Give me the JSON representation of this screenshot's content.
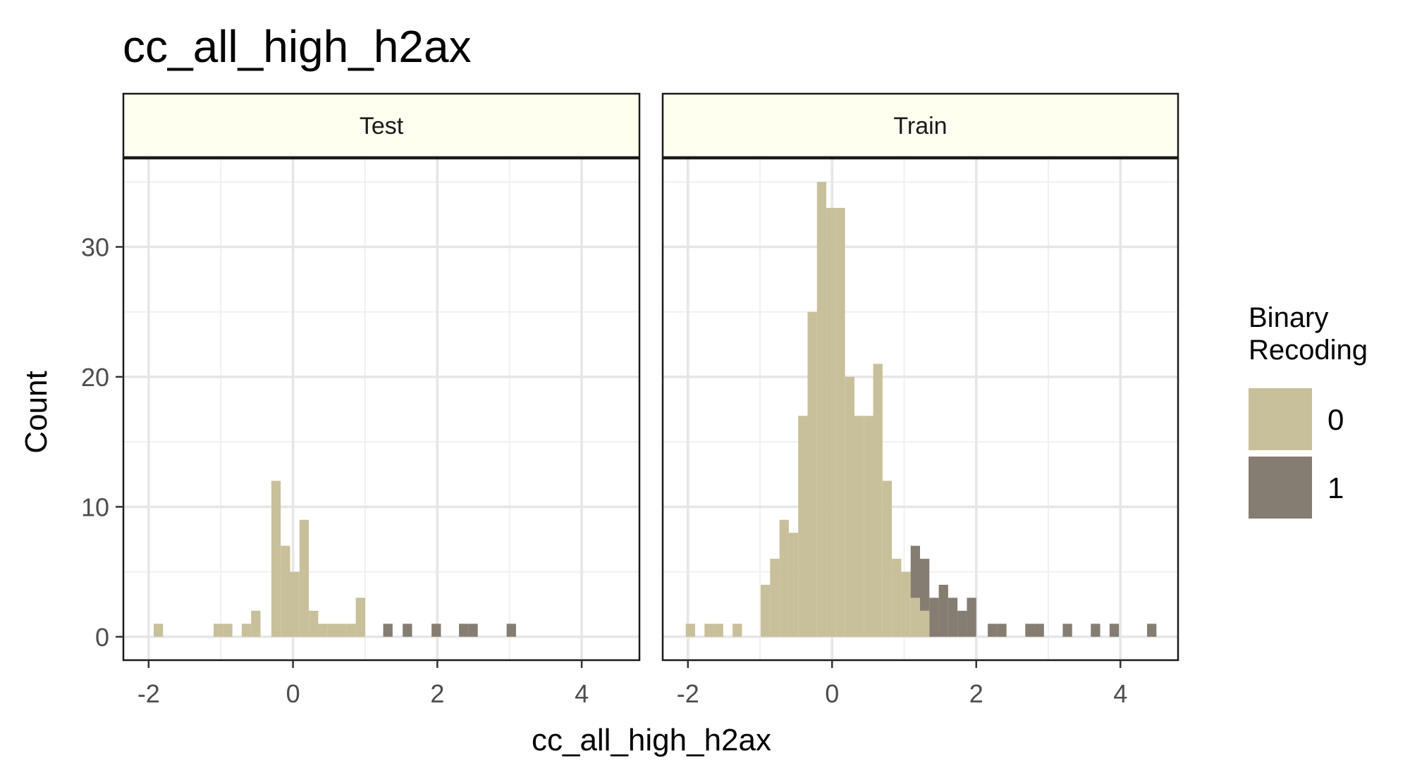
{
  "chart_data": {
    "type": "bar",
    "title": "cc_all_high_h2ax",
    "xlabel": "cc_all_high_h2ax",
    "ylabel": "Count",
    "xlim": [
      -2.35,
      4.8
    ],
    "ylim": [
      -1.8,
      36.8
    ],
    "x_ticks": [
      -2,
      0,
      2,
      4
    ],
    "x_tick_labels": [
      "-2",
      "0",
      "2",
      "4"
    ],
    "y_ticks": [
      0,
      10,
      20,
      30
    ],
    "y_tick_labels": [
      "0",
      "10",
      "20",
      "30"
    ],
    "grid": true,
    "bin_width": 0.13,
    "legend": {
      "title_lines": [
        "Binary",
        "Recoding"
      ],
      "placement": "right",
      "entries": [
        {
          "label": "0",
          "color": "#c8c09a"
        },
        {
          "label": "1",
          "color": "#857d72"
        }
      ]
    },
    "panels": [
      {
        "name": "Test",
        "series": [
          {
            "name": "0",
            "color": "#c8c09a",
            "bins": [
              [
                -1.93,
                -1.8,
                1
              ],
              [
                -1.1,
                -0.97,
                1
              ],
              [
                -0.97,
                -0.84,
                1
              ],
              [
                -0.71,
                -0.58,
                1
              ],
              [
                -0.58,
                -0.45,
                2
              ],
              [
                -0.3,
                -0.17,
                12
              ],
              [
                -0.17,
                -0.04,
                7
              ],
              [
                -0.04,
                0.09,
                5
              ],
              [
                0.09,
                0.22,
                9
              ],
              [
                0.22,
                0.35,
                2
              ],
              [
                0.35,
                0.48,
                1
              ],
              [
                0.48,
                0.61,
                1
              ],
              [
                0.61,
                0.74,
                1
              ],
              [
                0.74,
                0.87,
                1
              ],
              [
                0.87,
                1.0,
                3
              ]
            ]
          },
          {
            "name": "1",
            "color": "#857d72",
            "bins": [
              [
                1.25,
                1.38,
                1
              ],
              [
                1.52,
                1.65,
                1
              ],
              [
                1.92,
                2.05,
                1
              ],
              [
                2.3,
                2.43,
                1
              ],
              [
                2.43,
                2.56,
                1
              ],
              [
                2.96,
                3.09,
                1
              ]
            ]
          }
        ]
      },
      {
        "name": "Train",
        "series": [
          {
            "name": "0",
            "color": "#c8c09a",
            "bins": [
              [
                -2.03,
                -1.9,
                1
              ],
              [
                -1.77,
                -1.64,
                1
              ],
              [
                -1.64,
                -1.51,
                1
              ],
              [
                -1.38,
                -1.25,
                1
              ],
              [
                -0.99,
                -0.86,
                4
              ],
              [
                -0.86,
                -0.73,
                6
              ],
              [
                -0.73,
                -0.6,
                9
              ],
              [
                -0.6,
                -0.47,
                8
              ],
              [
                -0.47,
                -0.34,
                17
              ],
              [
                -0.34,
                -0.21,
                25
              ],
              [
                -0.21,
                -0.08,
                35
              ],
              [
                -0.08,
                0.05,
                33
              ],
              [
                0.05,
                0.18,
                33
              ],
              [
                0.18,
                0.31,
                20
              ],
              [
                0.31,
                0.44,
                17
              ],
              [
                0.44,
                0.57,
                17
              ],
              [
                0.57,
                0.7,
                21
              ],
              [
                0.7,
                0.83,
                12
              ],
              [
                0.83,
                0.96,
                6
              ],
              [
                0.96,
                1.09,
                5
              ],
              [
                1.09,
                1.22,
                3
              ],
              [
                1.22,
                1.35,
                2
              ]
            ]
          },
          {
            "name": "1",
            "color": "#857d72",
            "bins": [
              [
                1.09,
                1.22,
                4
              ],
              [
                1.22,
                1.35,
                4
              ],
              [
                1.35,
                1.48,
                3
              ],
              [
                1.48,
                1.61,
                4
              ],
              [
                1.61,
                1.74,
                3
              ],
              [
                1.74,
                1.87,
                2
              ],
              [
                1.87,
                2.0,
                3
              ],
              [
                2.16,
                2.29,
                1
              ],
              [
                2.29,
                2.42,
                1
              ],
              [
                2.68,
                2.81,
                1
              ],
              [
                2.81,
                2.94,
                1
              ],
              [
                3.2,
                3.33,
                1
              ],
              [
                3.59,
                3.72,
                1
              ],
              [
                3.85,
                3.98,
                1
              ],
              [
                4.37,
                4.5,
                1
              ]
            ]
          }
        ]
      }
    ]
  }
}
